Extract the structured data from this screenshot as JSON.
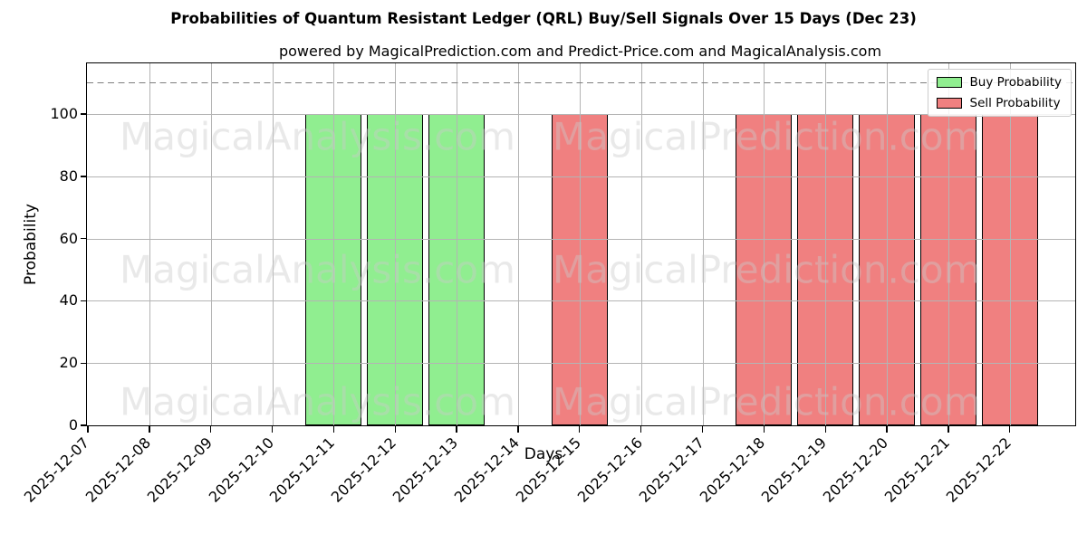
{
  "title": "Probabilities of Quantum Resistant Ledger (QRL) Buy/Sell Signals Over 15 Days (Dec 23)",
  "subtitle": "powered by MagicalPrediction.com and Predict-Price.com and MagicalAnalysis.com",
  "watermarks": {
    "left_text": "MagicalAnalysis.com",
    "right_text": "MagicalPrediction.com"
  },
  "legend": {
    "position": "upper right",
    "items": [
      {
        "label": "Buy Probability",
        "color": "#90ee90"
      },
      {
        "label": "Sell Probability",
        "color": "#f08080"
      }
    ]
  },
  "colors": {
    "buy": "#90ee90",
    "sell": "#f08080",
    "bar_edge": "#000000",
    "grid": "#b4b4b4",
    "threshold_line": "#7f7f7f"
  },
  "chart_data": {
    "type": "bar",
    "title": "Probabilities of Quantum Resistant Ledger (QRL) Buy/Sell Signals Over 15 Days (Dec 23)",
    "xlabel": "Days",
    "ylabel": "Probability",
    "categories": [
      "2025-12-07",
      "2025-12-08",
      "2025-12-09",
      "2025-12-10",
      "2025-12-11",
      "2025-12-12",
      "2025-12-13",
      "2025-12-14",
      "2025-12-15",
      "2025-12-16",
      "2025-12-17",
      "2025-12-18",
      "2025-12-19",
      "2025-12-20",
      "2025-12-21",
      "2025-12-22"
    ],
    "series": [
      {
        "name": "Buy Probability",
        "color": "#90ee90",
        "values": [
          0,
          0,
          0,
          0,
          100,
          100,
          100,
          0,
          0,
          0,
          0,
          0,
          0,
          0,
          0,
          0
        ]
      },
      {
        "name": "Sell Probability",
        "color": "#f08080",
        "values": [
          0,
          0,
          0,
          0,
          0,
          0,
          0,
          0,
          100,
          0,
          0,
          100,
          100,
          100,
          100,
          100
        ]
      }
    ],
    "yticks": [
      0,
      20,
      40,
      60,
      80,
      100
    ],
    "ylim": [
      0,
      116.3
    ],
    "threshold_dashed_line_y": 110,
    "grid": true,
    "legend_position": "upper right"
  }
}
